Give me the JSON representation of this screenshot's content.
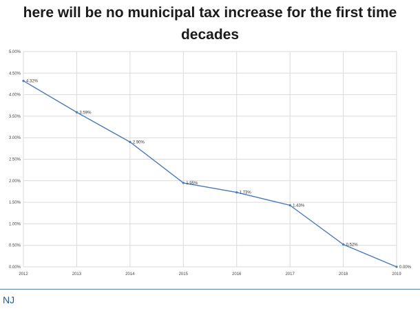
{
  "slide": {
    "title_line1": "here will be no municipal tax increase for the first time",
    "title_line2": "decades",
    "footer": "NJ"
  },
  "chart_data": {
    "type": "line",
    "title": "",
    "xlabel": "",
    "ylabel": "",
    "x": [
      "2012",
      "2013",
      "2014",
      "2015",
      "2016",
      "2017",
      "2018",
      "2019"
    ],
    "series": [
      {
        "values": [
          4.32,
          3.59,
          2.9,
          1.95,
          1.73,
          1.43,
          0.52,
          0.0
        ],
        "labels": [
          "4.32%",
          "3.59%",
          "2.90%",
          "1.95%",
          "1.73%",
          "1.43%",
          "0.52%",
          "0.00%"
        ]
      }
    ],
    "ylim": [
      0,
      5
    ],
    "yticks": [
      "0.00%",
      "0.50%",
      "1.00%",
      "1.50%",
      "2.00%",
      "2.50%",
      "3.00%",
      "3.50%",
      "4.00%",
      "4.50%",
      "5.00%"
    ],
    "grid": true,
    "legend": "none",
    "line_color": "#4a7ab5",
    "grid_color": "#d9d9d9"
  }
}
